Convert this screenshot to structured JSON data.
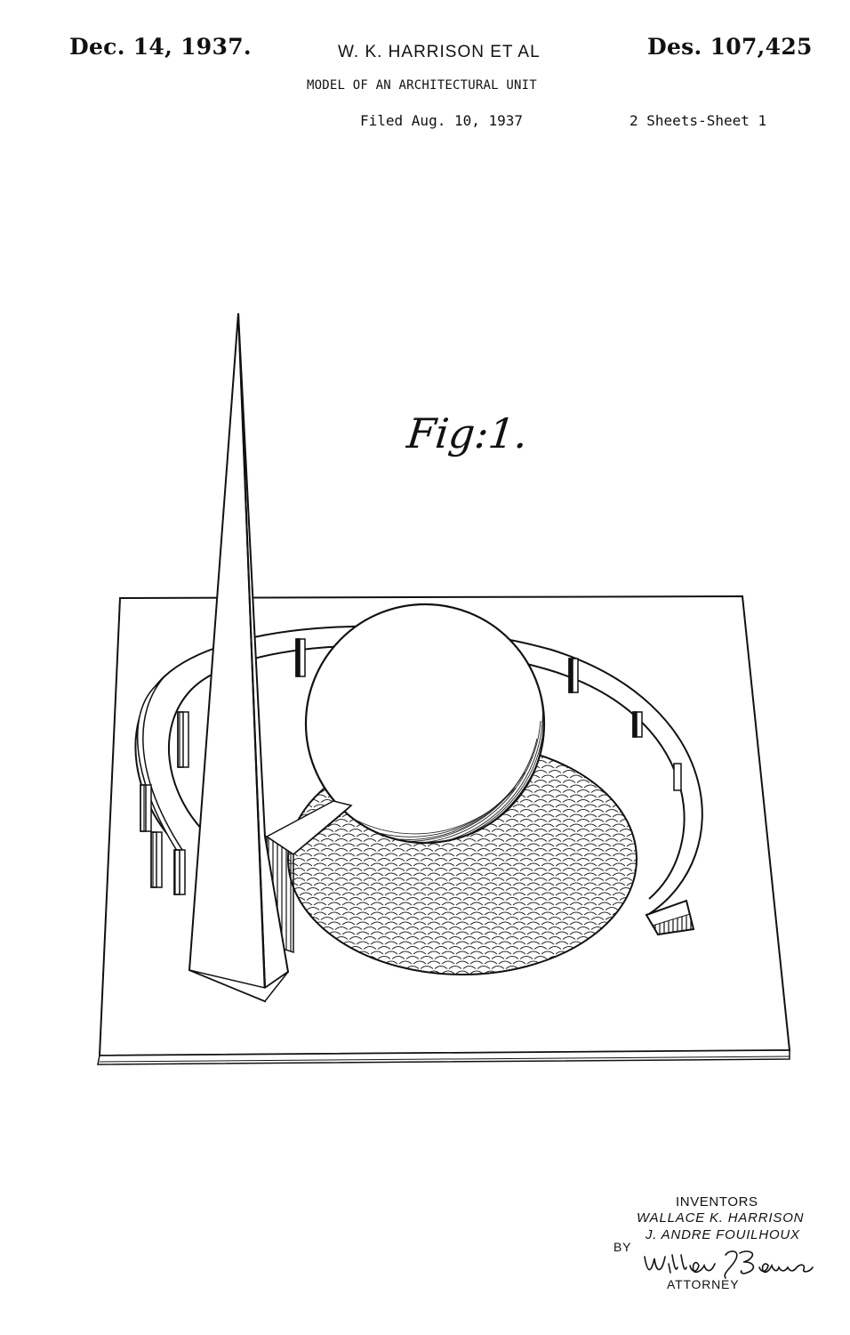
{
  "header": {
    "date": "Dec. 14, 1937.",
    "inventors_short": "W. K. HARRISON ET AL",
    "patent_number": "Des. 107,425",
    "title": "MODEL OF AN ARCHITECTURAL UNIT",
    "filed": "Filed Aug. 10, 1937",
    "sheets": "2 Sheets-Sheet 1"
  },
  "figure": {
    "label": "Fig:1.",
    "subject": "Trylon and Perisphere model"
  },
  "signature_block": {
    "heading": "INVENTORS",
    "inventor_1": "WALLACE K. HARRISON",
    "inventor_2": "J. ANDRE FOUILHOUX",
    "by": "BY",
    "attorney_signature": "William J. Barnes",
    "attorney_label": "ATTORNEY"
  }
}
